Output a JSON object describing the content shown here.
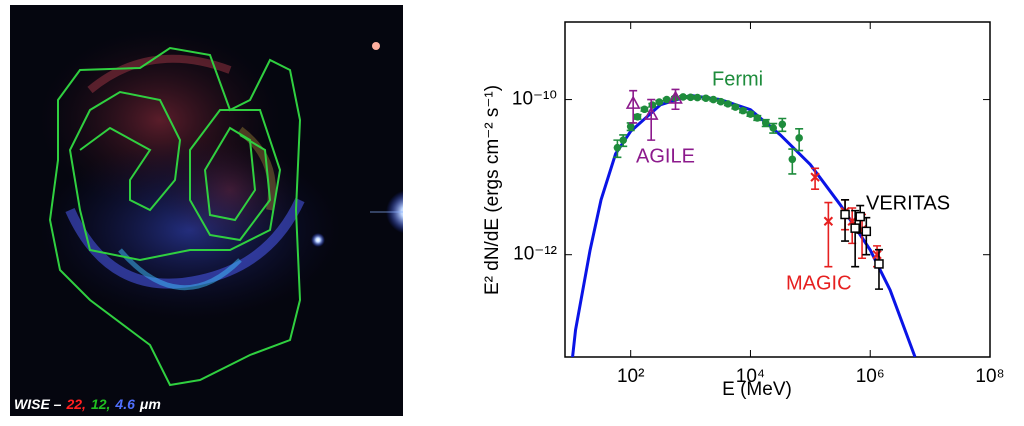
{
  "image": {
    "caption": [
      {
        "text": "WISE –",
        "color": "#ffffff"
      },
      {
        "text": "22,",
        "color": "#ff2020"
      },
      {
        "text": "12,",
        "color": "#20c020"
      },
      {
        "text": "4.6",
        "color": "#5070ff"
      },
      {
        "text": "μm",
        "color": "#ffffff"
      }
    ]
  },
  "chart_data": {
    "type": "scatter",
    "xscale": "log",
    "yscale": "log",
    "xlabel": "E  (MeV)",
    "ylabel": "E² dN/dE  (ergs cm⁻² s⁻¹)",
    "xlim": [
      8,
      100000000
    ],
    "ylim": [
      4.8e-14,
      1e-09
    ],
    "xticks": [
      {
        "value": 100,
        "label": "10²"
      },
      {
        "value": 10000,
        "label": "10⁴"
      },
      {
        "value": 1000000,
        "label": "10⁶"
      },
      {
        "value": 100000000,
        "label": "10⁸"
      }
    ],
    "yticks": [
      {
        "value": 1e-12,
        "label": "10⁻¹²"
      },
      {
        "value": 1e-10,
        "label": "10⁻¹⁰"
      }
    ],
    "series": [
      {
        "marker": "line",
        "color": "#0a14e6",
        "x": [
          10,
          12,
          21,
          32,
          56,
          100,
          316,
          1000,
          3160,
          10000,
          31600,
          100000,
          316000,
          1000000,
          2150000,
          5600000
        ],
        "values": [
          3e-14,
          1.07e-13,
          1.15e-12,
          5.1e-12,
          2e-11,
          3.9e-11,
          8.6e-11,
          1.13e-10,
          1e-10,
          7.4e-11,
          3.5e-11,
          1.45e-11,
          4.4e-12,
          1.15e-12,
          3.5e-13,
          4.8e-14
        ]
      },
      {
        "name": "Fermi",
        "marker": "circle",
        "color": "#1e8c3c",
        "x": [
          60,
          75,
          100,
          130,
          170,
          230,
          300,
          400,
          550,
          750,
          1000,
          1300,
          1800,
          2400,
          3200,
          4200,
          5600,
          7500,
          10000,
          13000,
          18000,
          24000,
          34000,
          50000,
          65000
        ],
        "values": [
          2.4e-11,
          3e-11,
          4.5e-11,
          6e-11,
          7.5e-11,
          8.5e-11,
          9.3e-11,
          1e-10,
          1.05e-10,
          1.08e-10,
          1.07e-10,
          1.06e-10,
          1.04e-10,
          1e-10,
          9.4e-11,
          8.8e-11,
          8e-11,
          7.2e-11,
          6.5e-11,
          5.8e-11,
          5e-11,
          4.3e-11,
          4.8e-11,
          1.7e-11,
          3.2e-11
        ],
        "errors": [
          6e-12,
          5e-12,
          5e-12,
          4e-12,
          4e-12,
          4e-12,
          4e-12,
          4e-12,
          4e-12,
          4e-12,
          4e-12,
          4e-12,
          4e-12,
          4e-12,
          4e-12,
          4e-12,
          4e-12,
          4e-12,
          4e-12,
          4e-12,
          5e-12,
          6e-12,
          9e-12,
          6e-12,
          1e-11
        ]
      },
      {
        "name": "AGILE",
        "marker": "triangle",
        "color": "#8c1a8c",
        "x": [
          110,
          220,
          560
        ],
        "values": [
          9e-11,
          6.5e-11,
          1.05e-10
        ],
        "errors": [
          4e-11,
          3.5e-11,
          3e-11
        ]
      },
      {
        "name": "MAGIC",
        "marker": "x",
        "color": "#e62020",
        "x": [
          120000,
          200000,
          380000,
          500000,
          730000,
          1300000
        ],
        "values": [
          1e-11,
          2.7e-12,
          3.6e-12,
          2.7e-12,
          2.1e-12,
          1e-12
        ],
        "errors": [
          3e-12,
          2e-12,
          1.5e-12,
          1.3e-12,
          1.2e-12,
          3e-13
        ]
      },
      {
        "name": "VERITAS",
        "marker": "square",
        "color": "#000000",
        "x": [
          380000,
          560000,
          680000,
          860000,
          1400000
        ],
        "values": [
          3.3e-12,
          2.2e-12,
          3.1e-12,
          2e-12,
          7.6e-13
        ],
        "errors": [
          1.8e-12,
          1.5e-12,
          1.2e-12,
          1e-12,
          4e-13
        ]
      }
    ]
  }
}
